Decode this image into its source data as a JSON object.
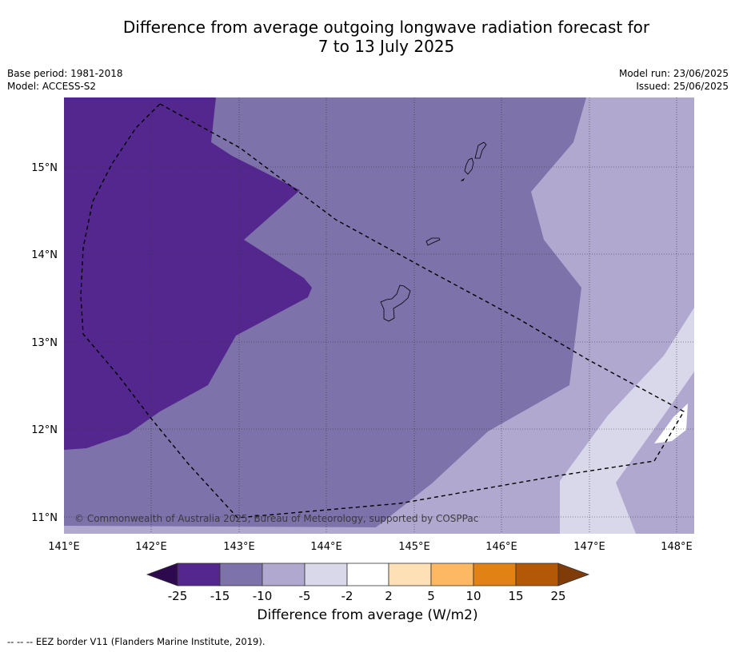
{
  "header": {
    "title_line1": "Difference from average outgoing longwave radiation forecast for",
    "title_line2": "7 to 13 July 2025",
    "base_period": "Base period: 1981-2018",
    "model": "Model: ACCESS-S2",
    "model_run": "Model run: 23/06/2025",
    "issued": "Issued: 25/06/2025"
  },
  "map": {
    "copyright": "© Commonwealth of Australia 2025, Bureau of Meteorology, supported by COSPPac",
    "lon_labels": [
      "141°E",
      "142°E",
      "143°E",
      "144°E",
      "145°E",
      "146°E",
      "147°E",
      "148°E"
    ],
    "lat_labels": [
      "15°N",
      "14°N",
      "13°N",
      "12°N",
      "11°N"
    ],
    "colors": {
      "lt_-15": "#54278f",
      "-15_-10": "#7e72ab",
      "-10_-5": "#b0a8cf",
      "-5_-2": "#d9d8eb",
      "land_outline": "#000000",
      "eez_border": "#000000"
    }
  },
  "colorbar": {
    "title": "Difference from average (W/m2)",
    "ticks": [
      "-25",
      "-15",
      "-10",
      "-5",
      "-2",
      "2",
      "5",
      "10",
      "15",
      "25"
    ],
    "colors": [
      "#2d0a4e",
      "#54278f",
      "#7e72ab",
      "#b0a8cf",
      "#d9d8eb",
      "#ffffff",
      "#fde0b6",
      "#fdb863",
      "#e08214",
      "#b35806",
      "#7f3b08"
    ]
  },
  "footer": {
    "note": "-- -- -- EEZ border V11 (Flanders Marine Institute, 2019)."
  }
}
